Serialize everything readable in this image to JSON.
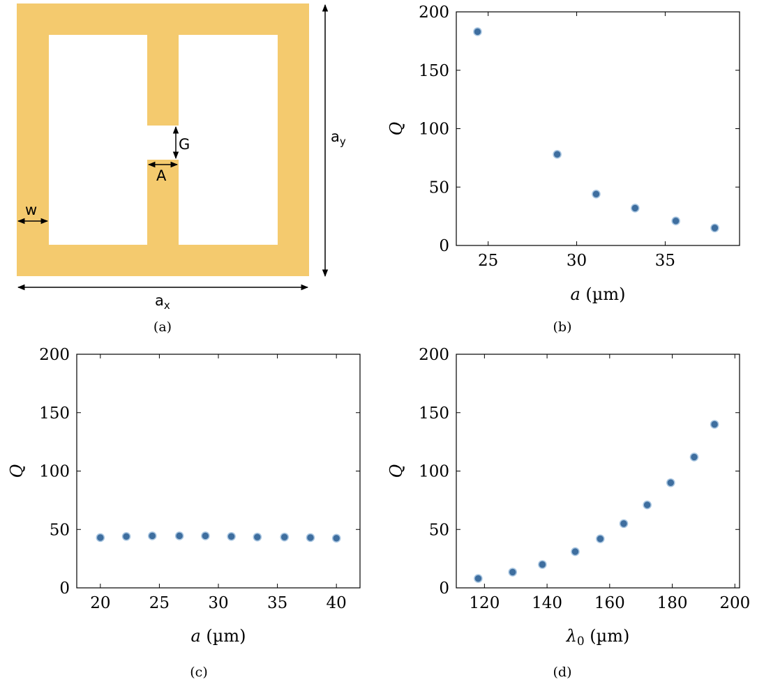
{
  "colors": {
    "resonator_fill": "#f4ca6e",
    "marker_fill": "#3e6e9f",
    "marker_stroke": "#a9c6e1"
  },
  "diagram": {
    "labels": {
      "w": "w",
      "a_x": "a",
      "a_x_sub": "x",
      "a_y": "a",
      "a_y_sub": "y",
      "G": "G",
      "A": "A"
    },
    "caption": "(a)"
  },
  "chart_data": [
    {
      "id": "b",
      "type": "scatter",
      "caption": "(b)",
      "xlabel_sym": "a",
      "xlabel_unit": " (µm)",
      "ylabel": "Q",
      "xlim": [
        23.2,
        39.2
      ],
      "ylim": [
        0,
        200
      ],
      "xticks": [
        25,
        30,
        35
      ],
      "yticks": [
        0,
        50,
        100,
        150,
        200
      ],
      "x": [
        24.4,
        28.9,
        31.1,
        33.3,
        35.6,
        37.8
      ],
      "y": [
        183,
        78,
        44,
        32,
        21,
        15
      ]
    },
    {
      "id": "c",
      "type": "scatter",
      "caption": "(c)",
      "xlabel_sym": "a",
      "xlabel_unit": " (µm)",
      "ylabel": "Q",
      "xlim": [
        18,
        42
      ],
      "ylim": [
        0,
        200
      ],
      "xticks": [
        20,
        25,
        30,
        35,
        40
      ],
      "yticks": [
        0,
        50,
        100,
        150,
        200
      ],
      "x": [
        20,
        22.2,
        24.4,
        26.7,
        28.9,
        31.1,
        33.3,
        35.6,
        37.8,
        40
      ],
      "y": [
        43,
        44,
        44.5,
        44.5,
        44.5,
        44,
        43.5,
        43.5,
        43,
        42.5
      ]
    },
    {
      "id": "d",
      "type": "scatter",
      "caption": "(d)",
      "xlabel_sym": "λ",
      "xlabel_sub": "0",
      "xlabel_unit": " (µm)",
      "ylabel": "Q",
      "xlim": [
        111,
        201.5
      ],
      "ylim": [
        0,
        200
      ],
      "xticks": [
        120,
        140,
        160,
        180,
        200
      ],
      "yticks": [
        0,
        50,
        100,
        150,
        200
      ],
      "x": [
        118,
        129,
        138.5,
        149,
        157,
        164.5,
        172,
        179.5,
        187,
        193.5
      ],
      "y": [
        8,
        13.5,
        20,
        31,
        42,
        55,
        71,
        90,
        112,
        140
      ]
    }
  ]
}
